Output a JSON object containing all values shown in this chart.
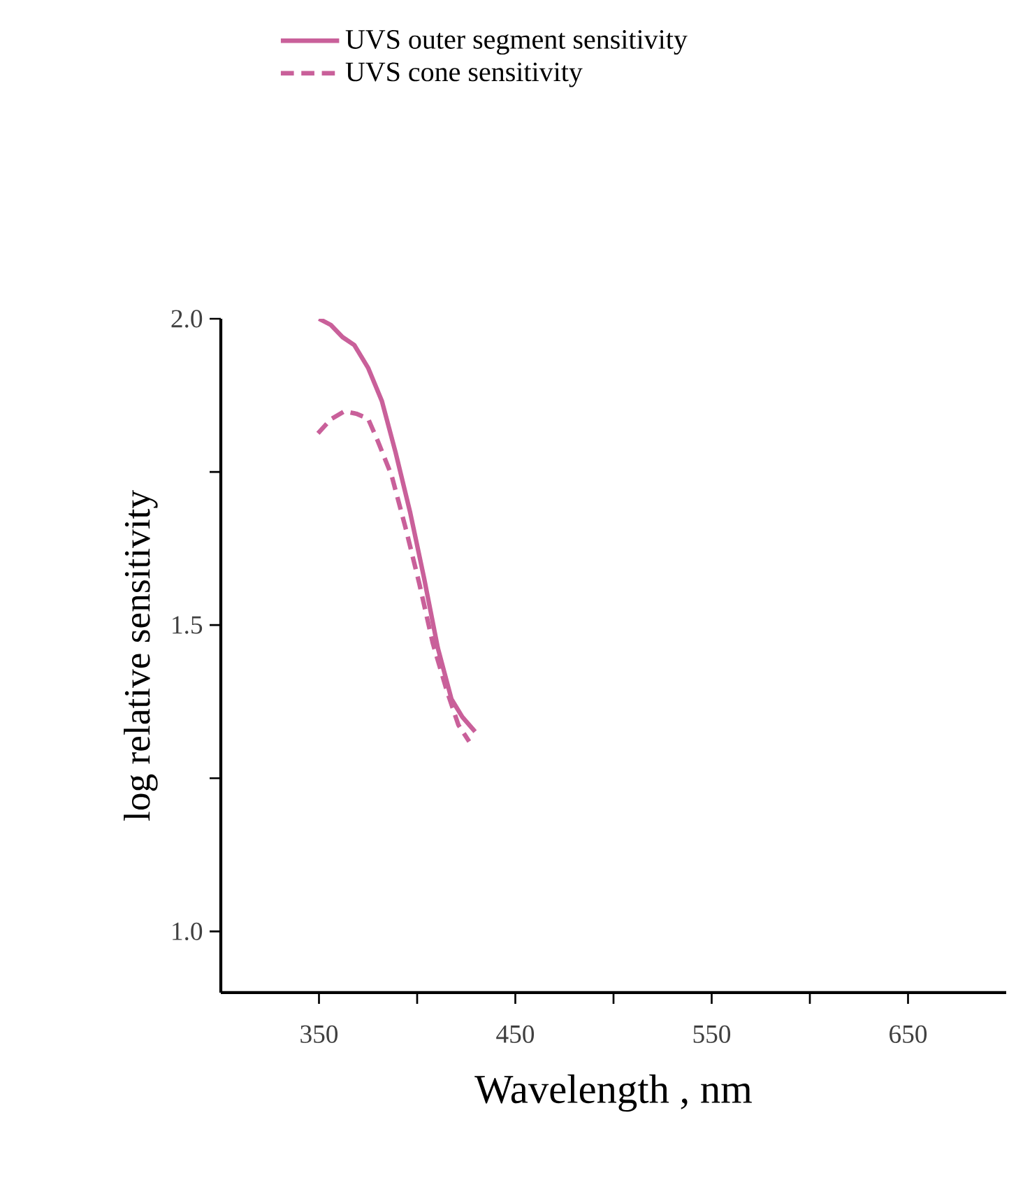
{
  "chart_data": {
    "type": "line",
    "xlabel": "Wavelength , nm",
    "ylabel": "log relative sensitivity",
    "xlim": [
      300,
      700
    ],
    "ylim": [
      0.9,
      2.0
    ],
    "xticks": [
      350,
      {
        "value": 400,
        "label": null
      },
      450,
      {
        "value": 500,
        "label": null
      },
      550,
      {
        "value": 600,
        "label": null
      },
      650
    ],
    "yticks": [
      {
        "value": 1.0,
        "label": "1.0"
      },
      {
        "value": 1.25,
        "label": null
      },
      1.5,
      {
        "value": 1.75,
        "label": null
      },
      {
        "value": 2.0,
        "label": "2.0"
      }
    ],
    "legend": "top",
    "grid": false,
    "series": [
      {
        "name": "UVS outer segment sensitivity",
        "color": "#c9609a",
        "line_style": "solid",
        "x": [
          350,
          356,
          362,
          368,
          375,
          382,
          389,
          396.5,
          403.5,
          410.5,
          417.5,
          423,
          429.5
        ],
        "values": [
          2.0,
          1.99,
          1.97,
          1.957,
          1.92,
          1.866,
          1.782,
          1.683,
          1.577,
          1.463,
          1.379,
          1.35,
          1.326
        ]
      },
      {
        "name": "UVS cone sensitivity",
        "color": "#c9609a",
        "line_style": "dashed",
        "x": [
          349.5,
          356,
          363,
          369,
          375,
          380,
          387,
          394,
          401,
          408,
          415,
          421,
          426.5
        ],
        "values": [
          1.813,
          1.836,
          1.849,
          1.845,
          1.837,
          1.8,
          1.744,
          1.66,
          1.569,
          1.47,
          1.394,
          1.337,
          1.31
        ]
      }
    ]
  }
}
